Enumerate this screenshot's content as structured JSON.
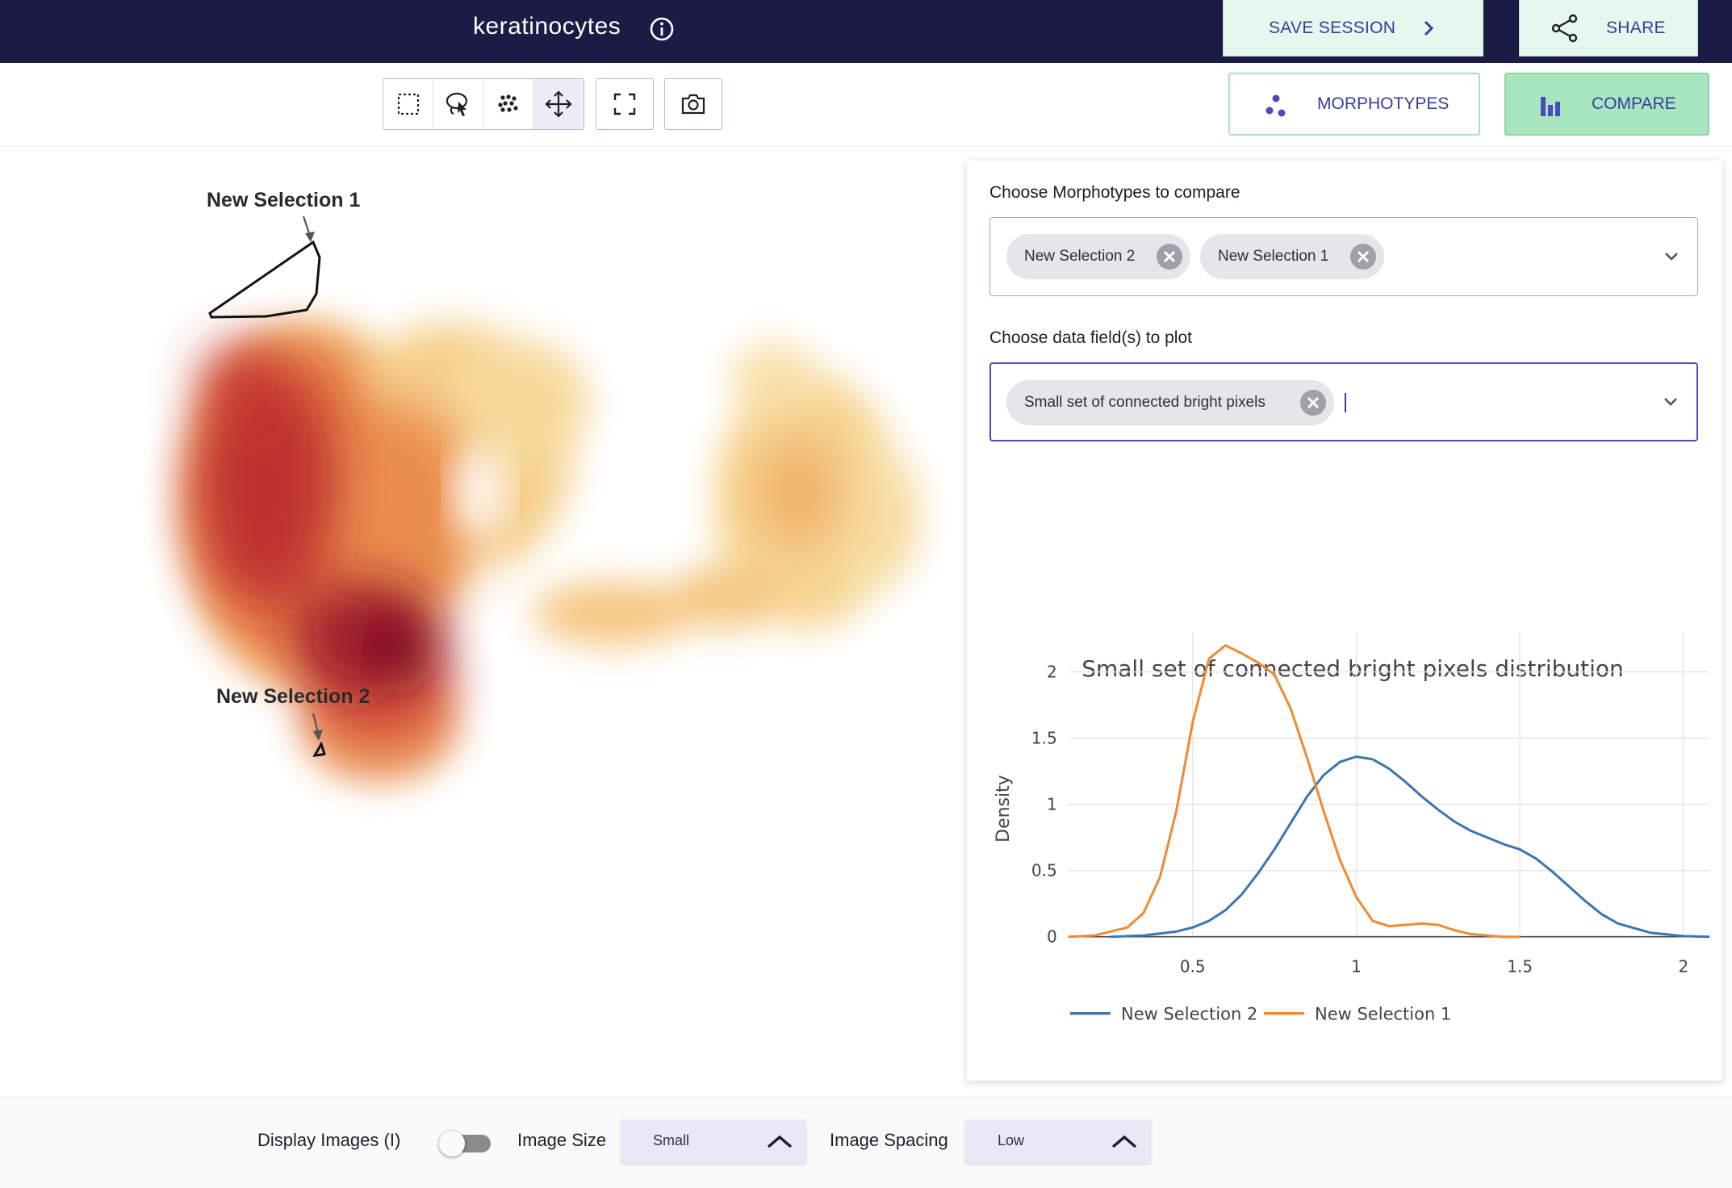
{
  "header": {
    "title": "keratinocytes",
    "save_label": "SAVE SESSION",
    "share_label": "SHARE"
  },
  "toolbar": {
    "tools": [
      "box-select-icon",
      "lasso-select-icon",
      "scatter-select-icon",
      "pan-icon"
    ],
    "active_tool": "pan-icon",
    "morphotypes_label": "MORPHOTYPES",
    "compare_label": "COMPARE"
  },
  "embedding": {
    "annotations": [
      "New Selection 1",
      "New Selection 2"
    ]
  },
  "panel": {
    "morphotypes_label": "Choose Morphotypes to compare",
    "morphotype_chips": [
      "New Selection 2",
      "New Selection 1"
    ],
    "fields_label": "Choose data field(s) to plot",
    "field_chips": [
      "Small set of connected bright pixels"
    ]
  },
  "chart_data": {
    "type": "line",
    "title": "Small set of connected bright pixels distribution",
    "xlabel": "",
    "ylabel": "Density",
    "xlim": [
      0.12,
      2.08
    ],
    "ylim": [
      0,
      2.3
    ],
    "x_ticks": [
      "0.5",
      "1",
      "1.5",
      "2"
    ],
    "y_ticks": [
      "0",
      "0.5",
      "1",
      "1.5",
      "2"
    ],
    "grid": true,
    "legend_position": "bottom",
    "series": [
      {
        "name": "New Selection 2",
        "color": "#3a76b0",
        "x": [
          0.25,
          0.35,
          0.45,
          0.5,
          0.55,
          0.6,
          0.65,
          0.7,
          0.75,
          0.8,
          0.85,
          0.9,
          0.95,
          1.0,
          1.05,
          1.1,
          1.15,
          1.2,
          1.25,
          1.3,
          1.35,
          1.4,
          1.45,
          1.5,
          1.55,
          1.6,
          1.65,
          1.7,
          1.75,
          1.8,
          1.9,
          2.0,
          2.08
        ],
        "y": [
          0.0,
          0.01,
          0.04,
          0.07,
          0.12,
          0.2,
          0.32,
          0.48,
          0.66,
          0.86,
          1.06,
          1.22,
          1.32,
          1.36,
          1.34,
          1.27,
          1.17,
          1.06,
          0.96,
          0.87,
          0.8,
          0.75,
          0.7,
          0.66,
          0.59,
          0.49,
          0.38,
          0.27,
          0.17,
          0.1,
          0.03,
          0.005,
          0.0
        ]
      },
      {
        "name": "New Selection 1",
        "color": "#f08a32",
        "x": [
          0.12,
          0.2,
          0.3,
          0.35,
          0.4,
          0.45,
          0.5,
          0.55,
          0.6,
          0.65,
          0.7,
          0.75,
          0.8,
          0.85,
          0.9,
          0.95,
          1.0,
          1.05,
          1.1,
          1.15,
          1.2,
          1.25,
          1.3,
          1.35,
          1.4,
          1.45,
          1.5
        ],
        "y": [
          0.0,
          0.01,
          0.07,
          0.18,
          0.45,
          0.95,
          1.62,
          2.1,
          2.2,
          2.14,
          2.07,
          1.98,
          1.72,
          1.35,
          0.95,
          0.58,
          0.3,
          0.12,
          0.08,
          0.09,
          0.1,
          0.09,
          0.05,
          0.02,
          0.01,
          0.0,
          0.0
        ]
      }
    ]
  },
  "bottom": {
    "display_images_label": "Display Images (I)",
    "image_size_label": "Image Size",
    "image_size_value": "Small",
    "image_spacing_label": "Image Spacing",
    "image_spacing_value": "Low"
  }
}
